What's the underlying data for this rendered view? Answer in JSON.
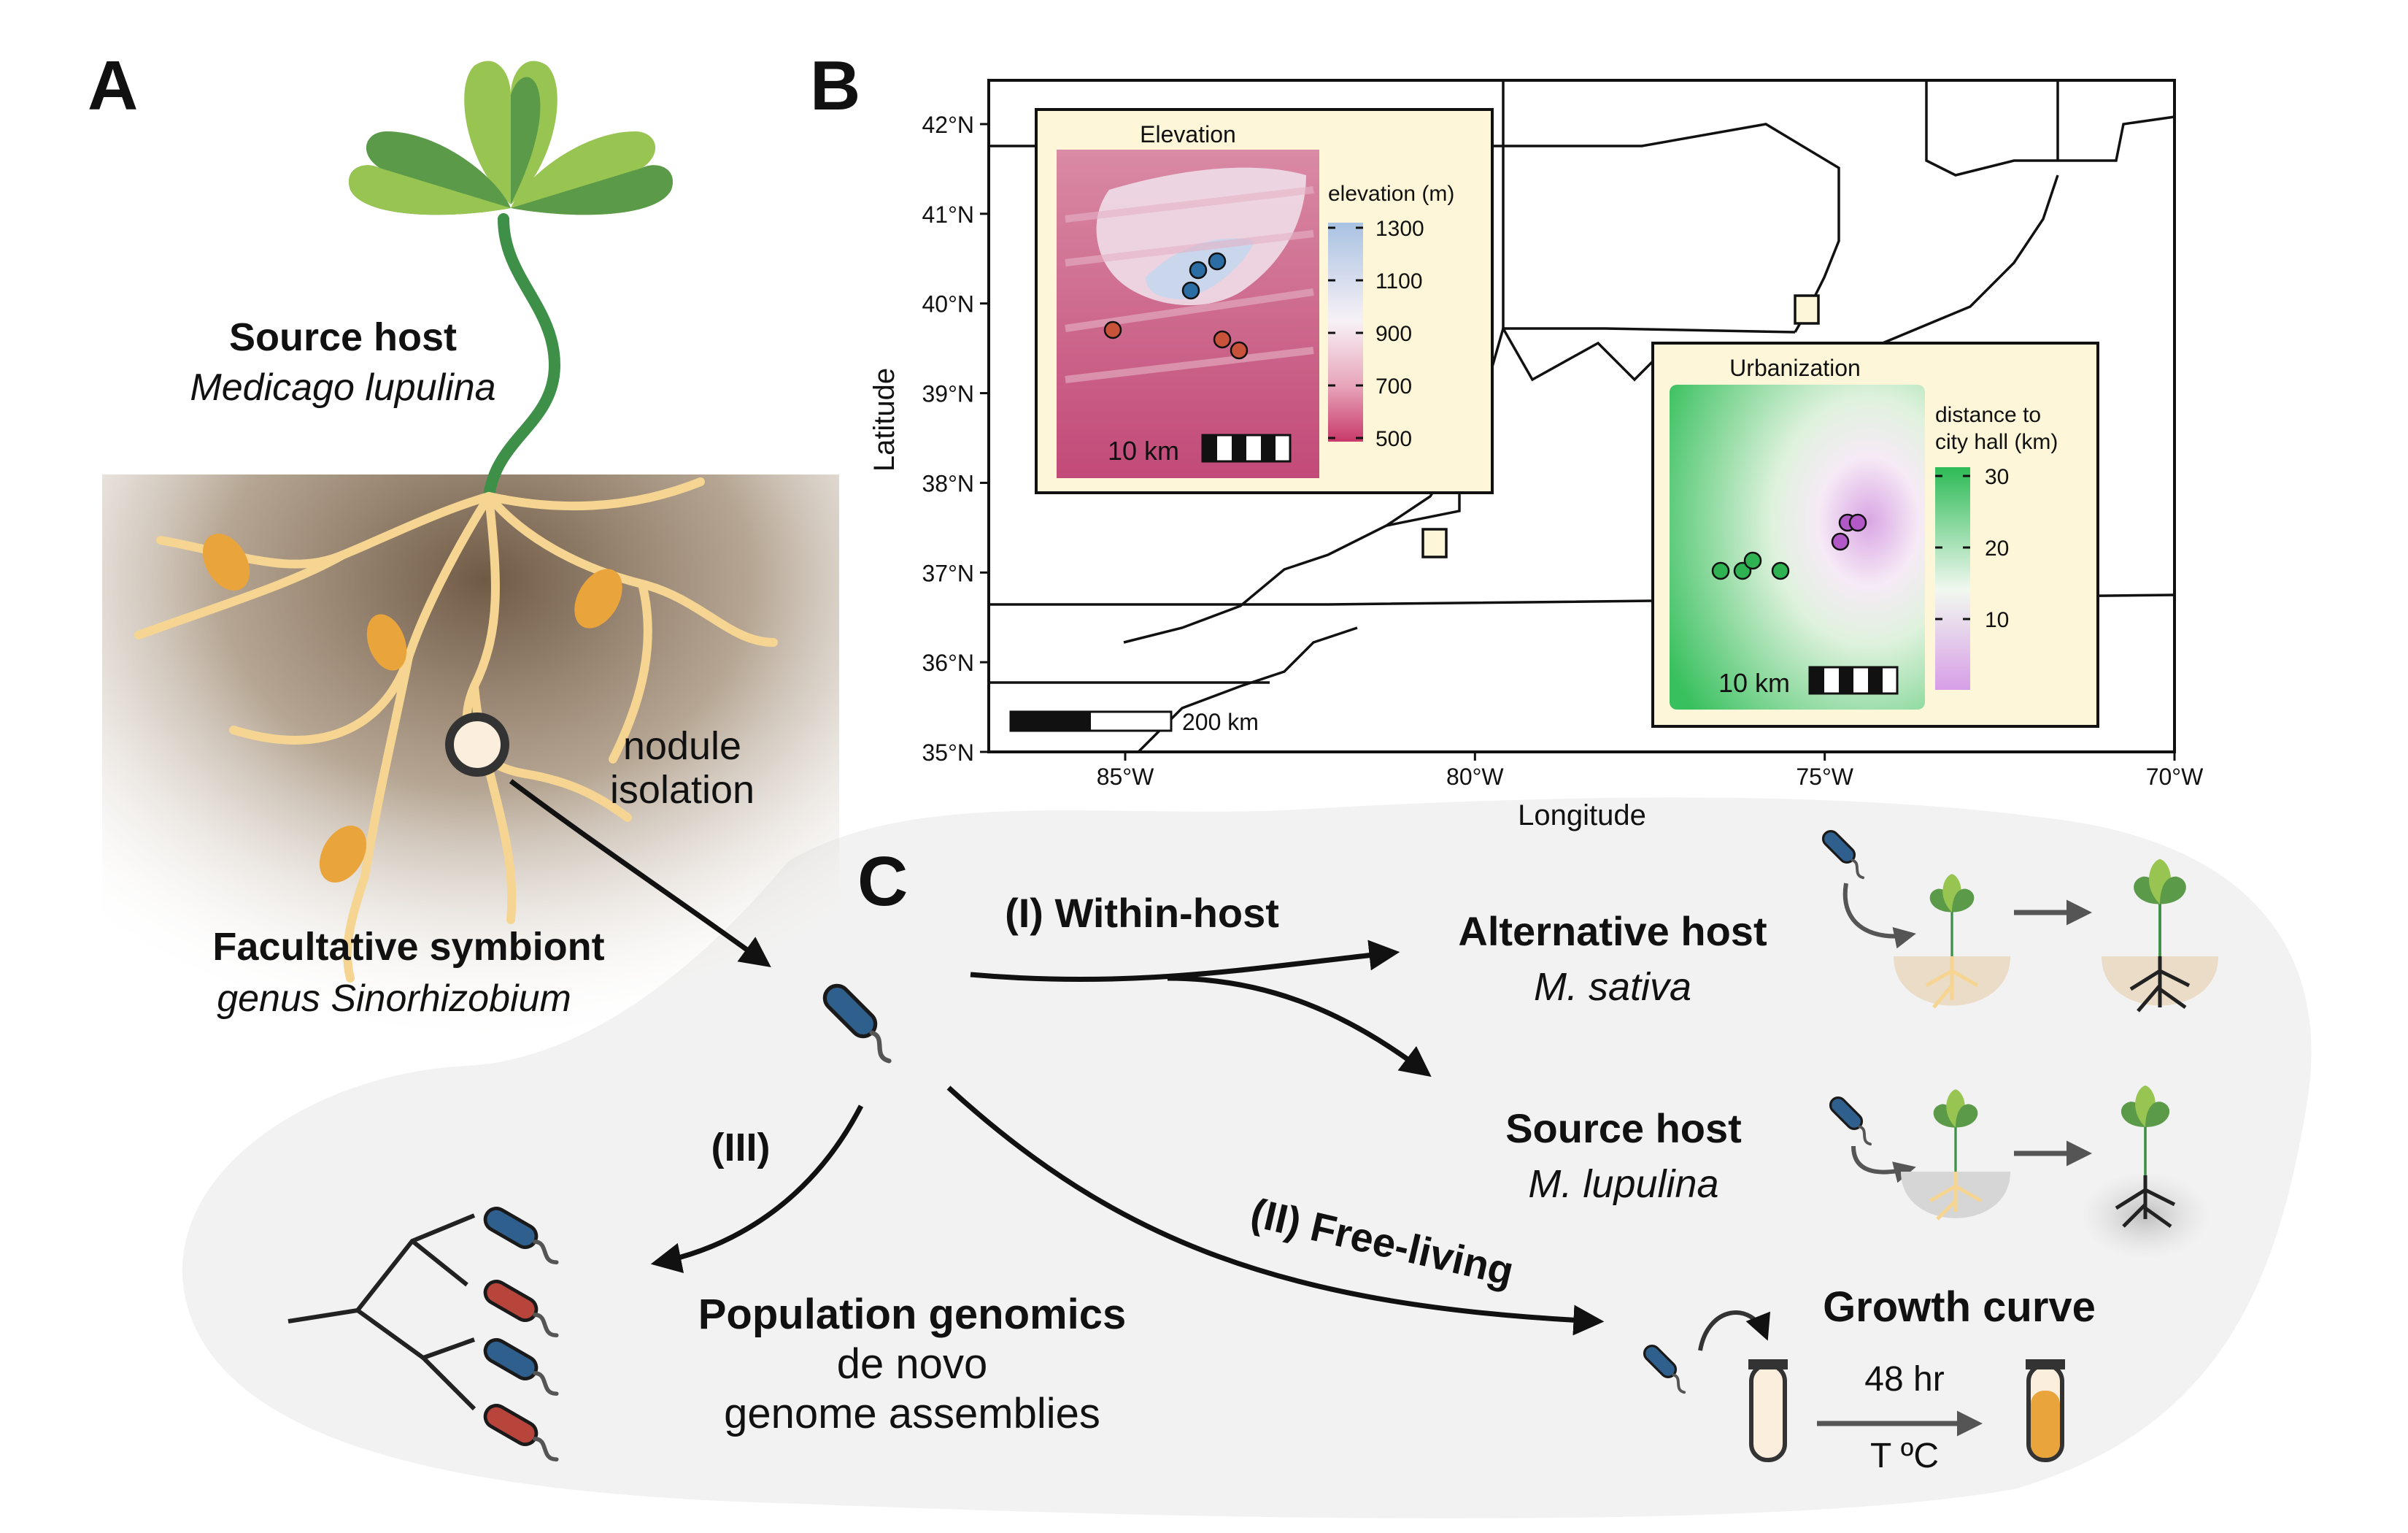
{
  "panels": {
    "a": "A",
    "b": "B",
    "c": "C"
  },
  "panel_a": {
    "source_host_title": "Source host",
    "source_host_species": "Medicago lupulina",
    "nodule_line1": "nodule",
    "nodule_line2": "isolation",
    "symbiont_title": "Facultative symbiont",
    "symbiont_genus": "genus Sinorhizobium"
  },
  "panel_b": {
    "y_axis_label": "Latitude",
    "x_axis_label": "Longitude",
    "y_ticks": [
      "42°N",
      "41°N",
      "40°N",
      "39°N",
      "38°N",
      "37°N",
      "36°N",
      "35°N"
    ],
    "x_ticks": [
      "85°W",
      "80°W",
      "75°W",
      "70°W"
    ],
    "scale_bar_label": "200 km",
    "elevation_inset": {
      "title": "Elevation",
      "legend_title": "elevation (m)",
      "legend_ticks": [
        "1300",
        "1100",
        "900",
        "700",
        "500"
      ],
      "scale_label": "10 km"
    },
    "urbanization_inset": {
      "title": "Urbanization",
      "legend_title_line1": "distance to",
      "legend_title_line2": "city hall (km)",
      "legend_ticks": [
        "30",
        "20",
        "10"
      ],
      "scale_label": "10 km"
    }
  },
  "panel_c": {
    "within_host_label": "(I) Within-host",
    "alt_host_title": "Alternative host",
    "alt_host_species": "M. sativa",
    "source_host_title": "Source host",
    "source_host_species": "M. lupulina",
    "free_living_label": "(II) Free-living",
    "genomics_branch_label": "(III)",
    "genomics_title": "Population genomics",
    "genomics_line2": "de novo",
    "genomics_line3": "genome assemblies",
    "growth_title": "Growth curve",
    "growth_time": "48 hr",
    "growth_temp": "T ºC"
  },
  "colors": {
    "leaf_light": "#98c452",
    "leaf_dark": "#5b9a48",
    "stem": "#3e8f48",
    "root": "#f5d591",
    "nodule": "#e9a43c",
    "soil": "#7b6550",
    "bacterium_blue": "#2f5f8c",
    "bacterium_red": "#b8453c",
    "inset_bg": "#fdf6d8",
    "high_site": "#2c6da3",
    "low_site": "#c9523a",
    "rural_site": "#2fb352",
    "urban_site": "#b059c7",
    "map_bg": "#ffffff",
    "cloud_bg": "#f2f2f2",
    "culture_yellow": "#e9a43c"
  }
}
